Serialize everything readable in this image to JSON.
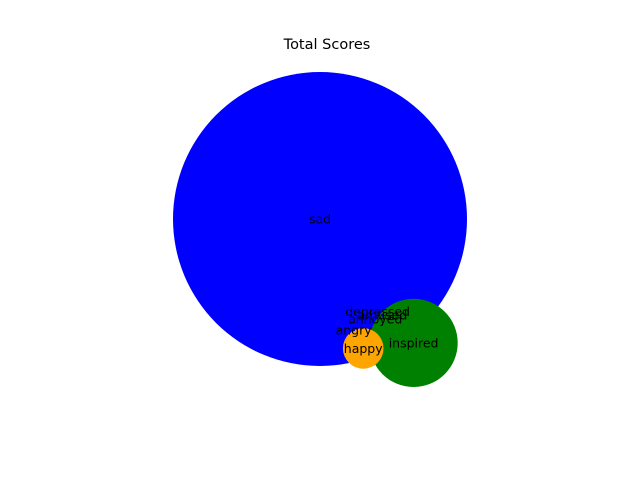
{
  "chart_data": {
    "type": "bubble",
    "title": "Total Scores",
    "xlabel": "",
    "ylabel": "",
    "grid": false,
    "axes_visible": false,
    "xlim": [
      0,
      100
    ],
    "ylim": [
      0,
      100
    ],
    "series": [
      {
        "label": "sad",
        "x": 50.0,
        "y": 56.5,
        "size": 100.0,
        "color": "#0000ff"
      },
      {
        "label": "inspired",
        "x": 69.5,
        "y": 23.0,
        "size": 9.0,
        "color": "#008000"
      },
      {
        "label": "happy",
        "x": 59.0,
        "y": 21.5,
        "size": 1.9,
        "color": "#ffa500"
      },
      {
        "label": "depressed",
        "x": 62.0,
        "y": 31.5,
        "size": 0.01,
        "color": "#0000ff"
      },
      {
        "label": "amused",
        "x": 63.0,
        "y": 30.5,
        "size": 0.01,
        "color": "#0000ff"
      },
      {
        "label": "annoyed",
        "x": 61.5,
        "y": 29.5,
        "size": 0.01,
        "color": "#0000ff"
      },
      {
        "label": "angry",
        "x": 57.0,
        "y": 26.5,
        "size": 0.01,
        "color": "#0000ff"
      }
    ]
  }
}
